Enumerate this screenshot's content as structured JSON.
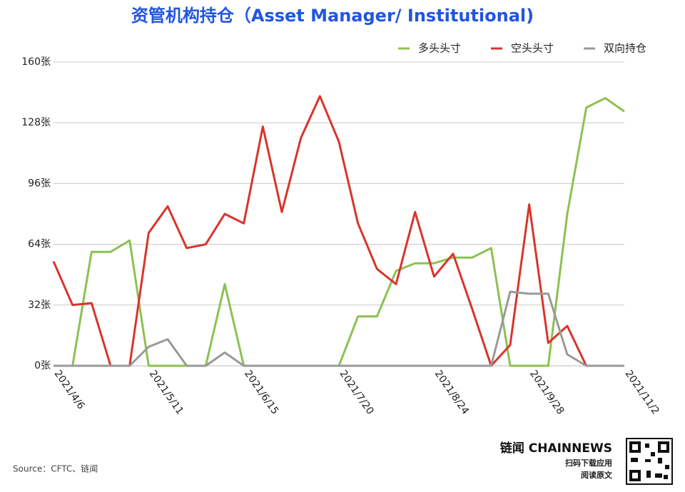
{
  "chart_data": {
    "type": "line",
    "title": "资管机构持仓（Asset Manager/ Institutional)",
    "categories": [
      "2021/4/6",
      null,
      null,
      null,
      null,
      "2021/5/11",
      null,
      null,
      null,
      null,
      "2021/6/15",
      null,
      null,
      null,
      null,
      "2021/7/20",
      null,
      null,
      null,
      null,
      "2021/8/24",
      null,
      null,
      null,
      null,
      "2021/9/28",
      null,
      null,
      null,
      null,
      "2021/11/2"
    ],
    "series": [
      {
        "name": "多头头寸",
        "color": "#8cc152",
        "values": [
          0,
          0,
          60,
          60,
          66,
          0,
          0,
          0,
          0,
          43,
          0,
          0,
          0,
          0,
          0,
          0,
          26,
          26,
          50,
          54,
          54,
          57,
          57,
          62,
          0,
          0,
          0,
          80,
          136,
          141,
          134
        ]
      },
      {
        "name": "空头头寸",
        "color": "#d9342b",
        "values": [
          55,
          32,
          33,
          0,
          0,
          70,
          84,
          62,
          64,
          80,
          75,
          126,
          81,
          120,
          142,
          118,
          75,
          51,
          43,
          81,
          47,
          59,
          30,
          0,
          11,
          85,
          12,
          21,
          0,
          0,
          0
        ]
      },
      {
        "name": "双向持仓",
        "color": "#999999",
        "values": [
          0,
          0,
          0,
          0,
          0,
          10,
          14,
          0,
          0,
          7,
          0,
          0,
          0,
          0,
          0,
          0,
          0,
          0,
          0,
          0,
          0,
          0,
          0,
          0,
          39,
          38,
          38,
          6,
          0,
          0,
          0
        ]
      }
    ],
    "ylim": [
      0,
      160
    ],
    "yticks": [
      {
        "value": 0,
        "label": "0张"
      },
      {
        "value": 32,
        "label": "32张"
      },
      {
        "value": 64,
        "label": "64张"
      },
      {
        "value": 96,
        "label": "96张"
      },
      {
        "value": 128,
        "label": "128张"
      },
      {
        "value": 160,
        "label": "160张"
      }
    ],
    "grid": true,
    "legend": "top-right",
    "source": "Source：CFTC、链闻",
    "brand": "链闻 CHAINNEWS",
    "brand_lines": [
      "扫码下载应用",
      "阅读原文"
    ]
  }
}
